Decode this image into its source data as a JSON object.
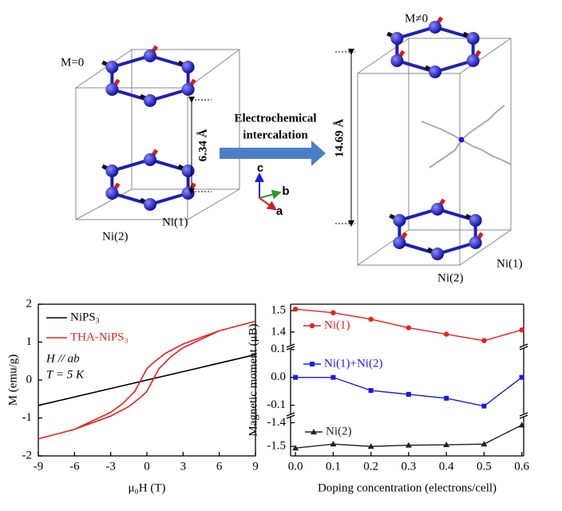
{
  "diagram": {
    "left_label": "M=0",
    "right_label": "M≠0",
    "left_spacing": "6.34 Å",
    "right_spacing": "14.69 Å",
    "arrow_text": [
      "Electrochemical",
      "intercalation"
    ],
    "axes": [
      "c",
      "b",
      "a"
    ],
    "left_sites": [
      "Ni(2)",
      "Ni(1)"
    ],
    "right_sites": [
      "Ni(2)",
      "Ni(1)"
    ]
  },
  "chart_data": [
    {
      "type": "line",
      "xlabel": "μ₀H (T)",
      "ylabel": "M (emu/g)",
      "annotations": [
        "H // ab",
        "T = 5 K"
      ],
      "xlim": [
        -9,
        9
      ],
      "xticks": [
        -9,
        -6,
        -3,
        0,
        3,
        6,
        9
      ],
      "ylim": [
        -2,
        2
      ],
      "yticks": [
        -2,
        -1,
        0,
        1,
        2
      ],
      "series": [
        {
          "name": "NiPS₃",
          "color": "#000000",
          "x": [
            -9,
            9
          ],
          "values": [
            -0.67,
            0.67
          ]
        },
        {
          "name": "THA-NiPS₃",
          "color": "#e8201e",
          "x": [
            9,
            6,
            3,
            1.5,
            0.5,
            0,
            -0.5,
            -1,
            -2,
            -3,
            -6,
            -9,
            -6,
            -3,
            -1.5,
            -0.5,
            0,
            0.5,
            1,
            2,
            3,
            6,
            9
          ],
          "values": [
            1.55,
            1.3,
            0.95,
            0.7,
            0.45,
            0.3,
            0,
            -0.3,
            -0.62,
            -0.85,
            -1.3,
            -1.55,
            -1.3,
            -0.95,
            -0.7,
            -0.45,
            -0.3,
            0,
            0.3,
            0.62,
            0.85,
            1.3,
            1.55
          ]
        }
      ]
    },
    {
      "type": "line",
      "xlabel": "Doping concentration (electrons/cell)",
      "ylabel": "Magnetic moment (μB)",
      "x": [
        0,
        0.1,
        0.2,
        0.3,
        0.4,
        0.5,
        0.6
      ],
      "xlim": [
        -0.013,
        0.605
      ],
      "xticks": [
        {
          "value": 0,
          "label": "0.0"
        },
        0.1,
        0.2,
        0.3,
        0.4,
        0.5,
        0.6
      ],
      "panels": [
        {
          "ylim": [
            1.34,
            1.53
          ],
          "yticks": [
            1.4,
            1.5
          ],
          "series": [
            {
              "name": "Ni(1)",
              "color": "#e8201e",
              "marker": "circle",
              "values": [
                1.507,
                1.49,
                1.46,
                1.42,
                1.39,
                1.36,
                1.41
              ]
            }
          ]
        },
        {
          "ylim": [
            -0.13,
            0.105
          ],
          "yticks": [
            -0.1,
            {
              "value": 0,
              "label": "0.0"
            },
            0.1
          ],
          "series": [
            {
              "name": "Ni(1)+Ni(2)",
              "color": "#1a1ae6",
              "marker": "square",
              "values": [
                0,
                0,
                -0.047,
                -0.061,
                -0.075,
                -0.103,
                0
              ]
            }
          ]
        },
        {
          "ylim": [
            -1.54,
            -1.375
          ],
          "yticks": [
            -1.5,
            -1.4
          ],
          "series": [
            {
              "name": "Ni(2)",
              "color": "#222222",
              "marker": "triangle",
              "values": [
                -1.507,
                -1.49,
                -1.5,
                -1.495,
                -1.493,
                -1.49,
                -1.41
              ]
            }
          ]
        }
      ]
    }
  ]
}
